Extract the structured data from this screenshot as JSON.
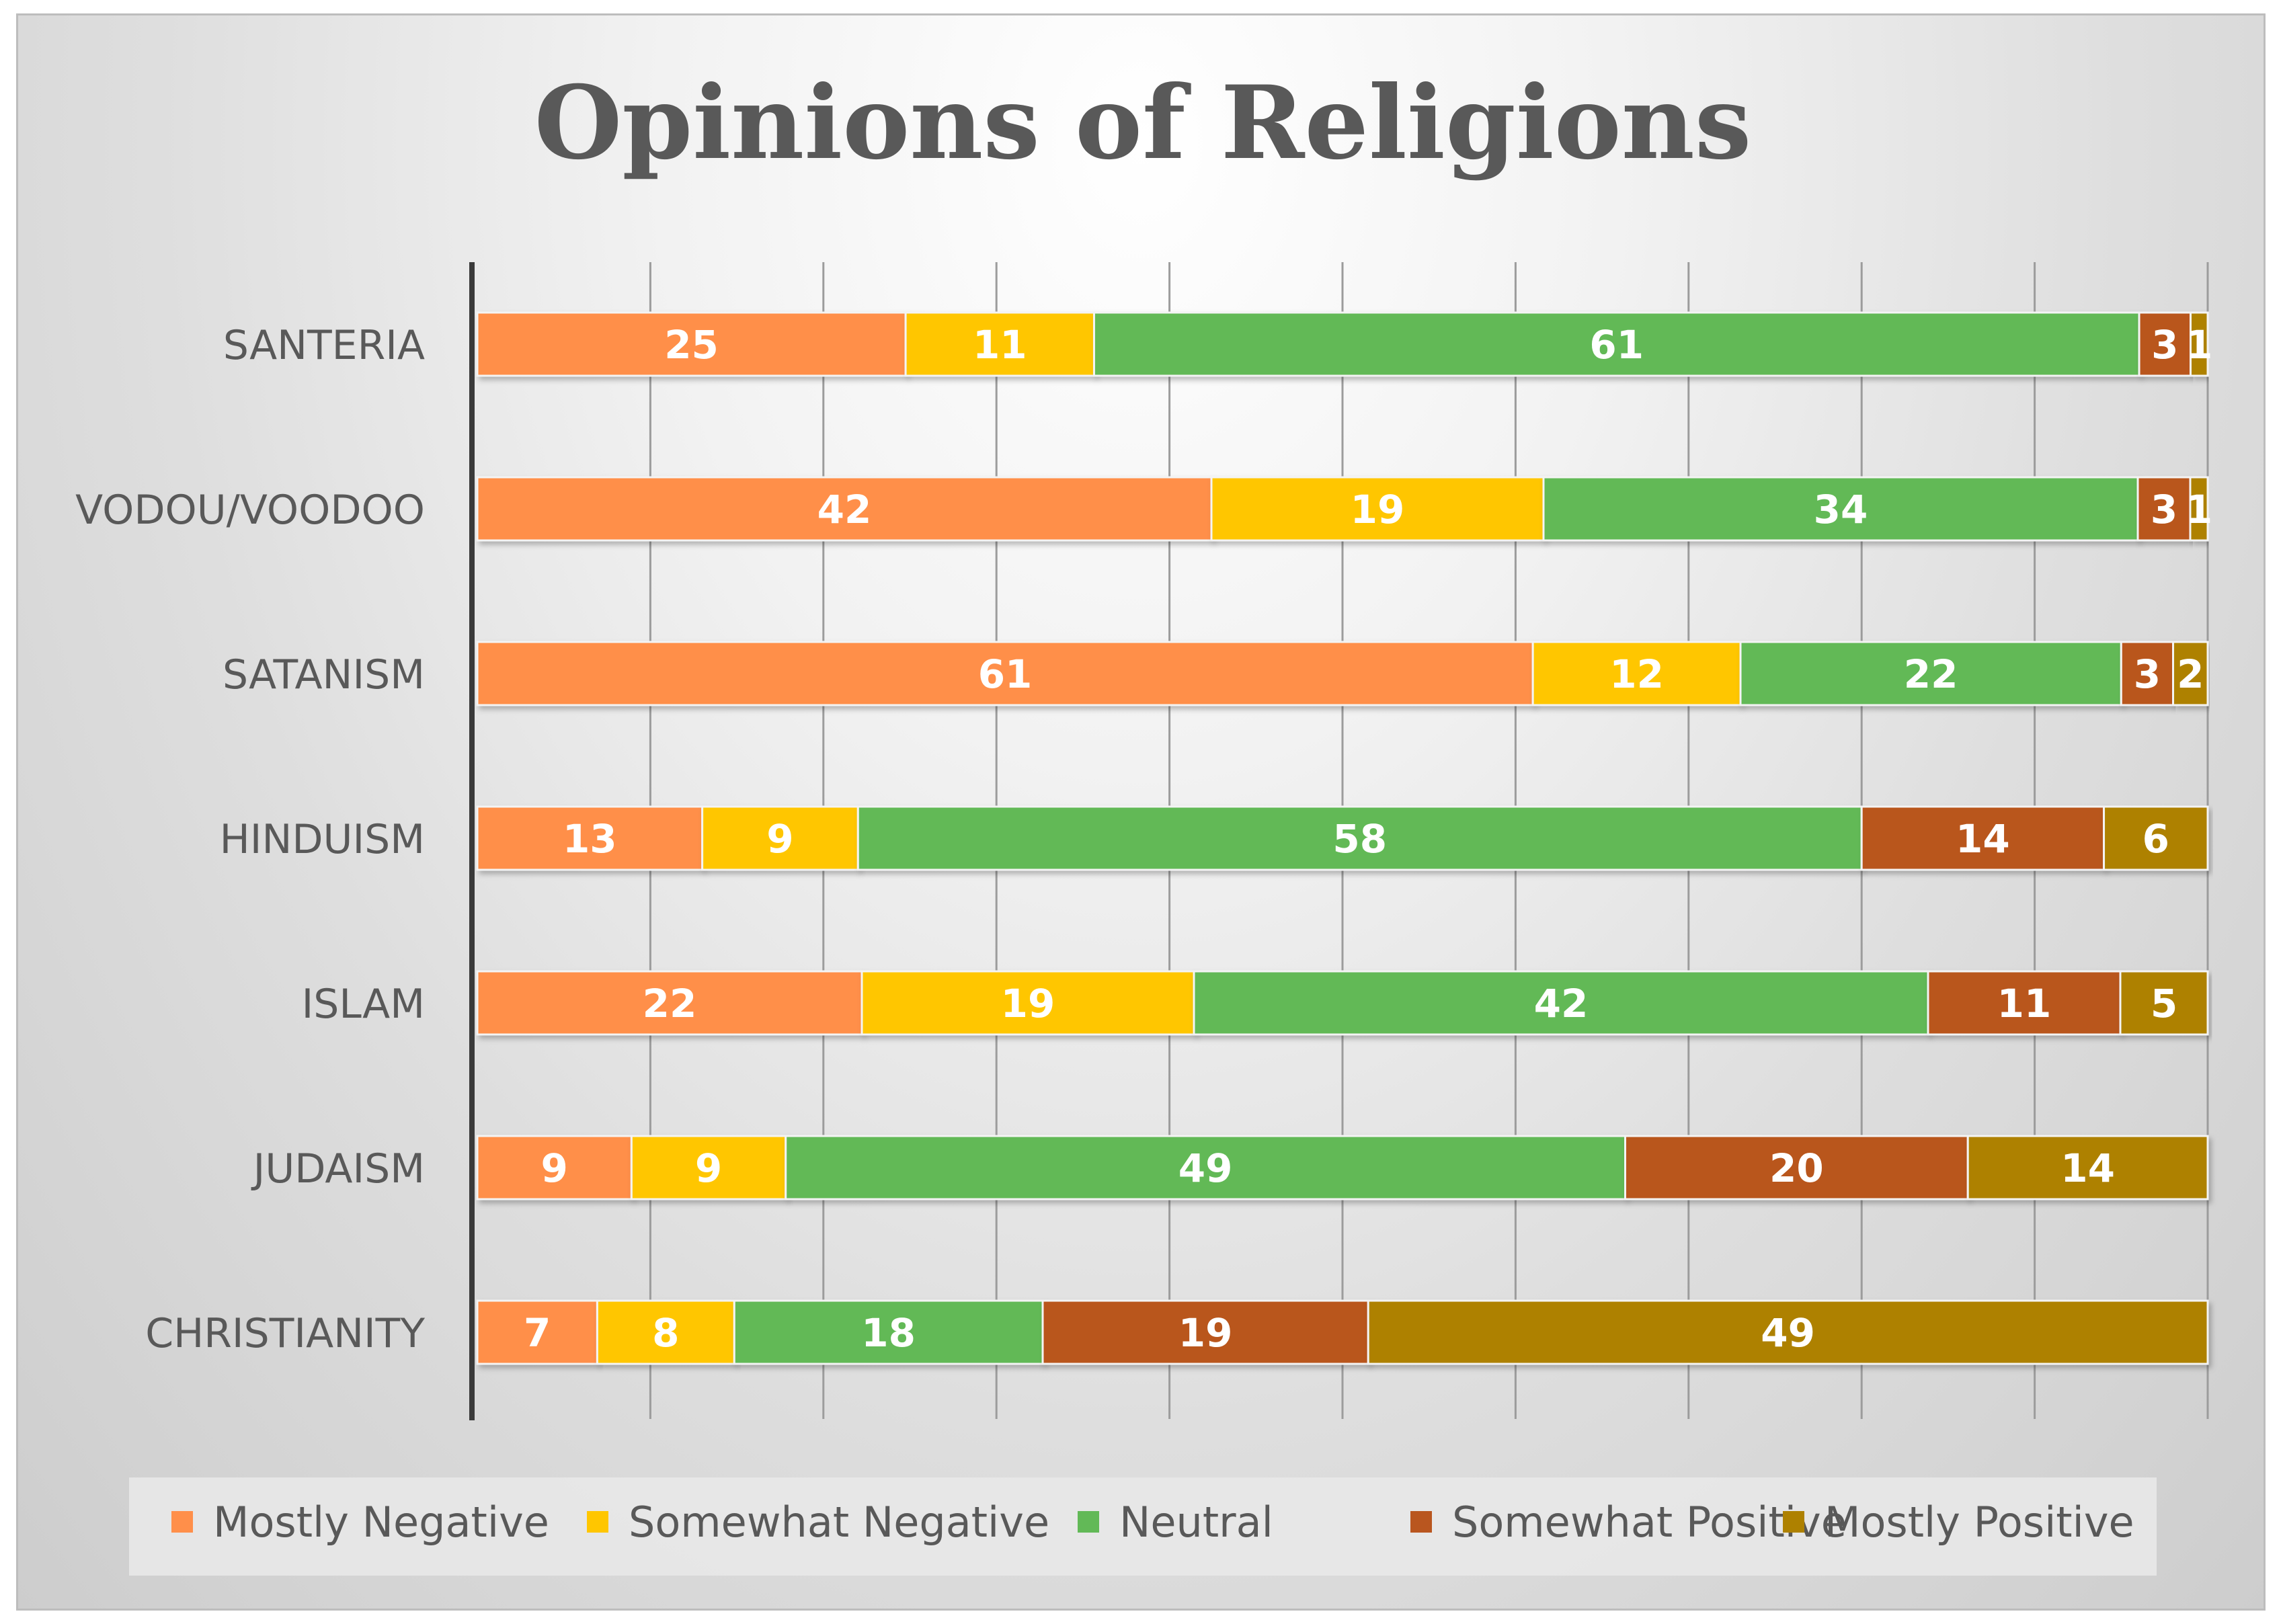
{
  "chart_data": {
    "type": "bar",
    "orientation": "horizontal",
    "stacked": true,
    "title": "Opinions of Religions",
    "xlabel": "",
    "ylabel": "",
    "xlim": [
      0,
      100
    ],
    "grid": true,
    "legend_position": "bottom",
    "categories": [
      "SANTERIA",
      "VODOU/VOODOO",
      "SATANISM",
      "HINDUISM",
      "ISLAM",
      "JUDAISM",
      "CHRISTIANITY"
    ],
    "series": [
      {
        "name": "Mostly Negative",
        "color": "#ff8f4a",
        "values": [
          25,
          42,
          61,
          13,
          22,
          9,
          7
        ]
      },
      {
        "name": "Somewhat Negative",
        "color": "#ffc600",
        "values": [
          11,
          19,
          12,
          9,
          19,
          9,
          8
        ]
      },
      {
        "name": "Neutral",
        "color": "#62b957",
        "values": [
          61,
          34,
          22,
          58,
          42,
          49,
          18
        ]
      },
      {
        "name": "Somewhat Positive",
        "color": "#b9561f",
        "values": [
          3,
          3,
          3,
          14,
          11,
          20,
          19
        ]
      },
      {
        "name": "Mostly Positive",
        "color": "#ae8100",
        "values": [
          1,
          1,
          2,
          6,
          5,
          14,
          49
        ]
      }
    ]
  }
}
